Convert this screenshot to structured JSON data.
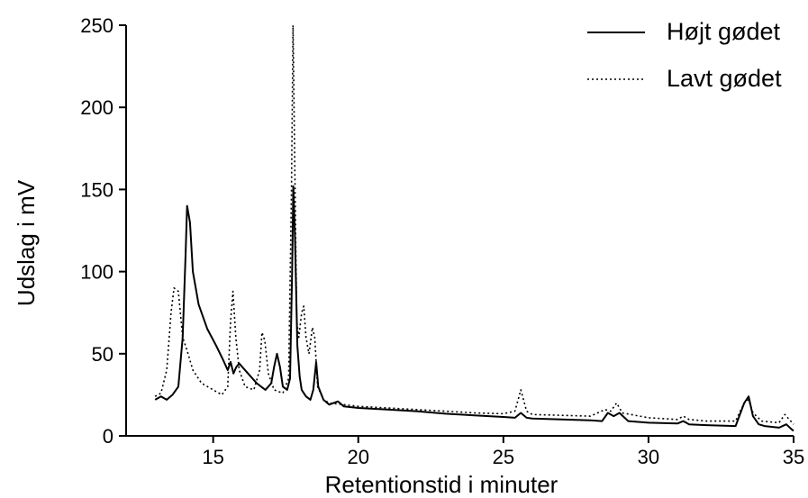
{
  "chart_data": {
    "type": "line",
    "xlabel": "Retentionstid i minuter",
    "ylabel": "Udslag i mV",
    "xlim": [
      12,
      35
    ],
    "ylim": [
      0,
      250
    ],
    "xticks": [
      15,
      20,
      25,
      30,
      35
    ],
    "yticks": [
      0,
      50,
      100,
      150,
      200,
      250
    ],
    "grid": false,
    "legend_position": "top-right",
    "series": [
      {
        "name": "Højt gødet",
        "style": "solid",
        "color": "#000000",
        "points": [
          [
            13.0,
            22
          ],
          [
            13.2,
            24
          ],
          [
            13.4,
            22
          ],
          [
            13.6,
            25
          ],
          [
            13.8,
            30
          ],
          [
            13.95,
            60
          ],
          [
            14.05,
            110
          ],
          [
            14.1,
            140
          ],
          [
            14.2,
            130
          ],
          [
            14.3,
            100
          ],
          [
            14.5,
            80
          ],
          [
            14.8,
            65
          ],
          [
            15.1,
            55
          ],
          [
            15.35,
            46
          ],
          [
            15.5,
            40
          ],
          [
            15.6,
            45
          ],
          [
            15.7,
            38
          ],
          [
            15.8,
            42
          ],
          [
            15.9,
            44
          ],
          [
            16.0,
            42
          ],
          [
            16.2,
            38
          ],
          [
            16.5,
            32
          ],
          [
            16.8,
            28
          ],
          [
            16.9,
            30
          ],
          [
            17.0,
            32
          ],
          [
            17.1,
            42
          ],
          [
            17.2,
            50
          ],
          [
            17.3,
            42
          ],
          [
            17.4,
            30
          ],
          [
            17.55,
            28
          ],
          [
            17.65,
            35
          ],
          [
            17.72,
            100
          ],
          [
            17.76,
            152
          ],
          [
            17.82,
            120
          ],
          [
            17.9,
            55
          ],
          [
            17.98,
            36
          ],
          [
            18.05,
            28
          ],
          [
            18.2,
            24
          ],
          [
            18.35,
            22
          ],
          [
            18.45,
            28
          ],
          [
            18.55,
            45
          ],
          [
            18.62,
            30
          ],
          [
            18.8,
            22
          ],
          [
            19.0,
            19
          ],
          [
            19.3,
            21
          ],
          [
            19.5,
            18
          ],
          [
            20,
            17
          ],
          [
            21,
            16
          ],
          [
            22,
            15
          ],
          [
            23,
            13.5
          ],
          [
            24,
            12.5
          ],
          [
            25,
            11.5
          ],
          [
            25.4,
            11
          ],
          [
            25.6,
            14
          ],
          [
            25.8,
            11
          ],
          [
            26,
            10.5
          ],
          [
            27,
            10
          ],
          [
            28,
            9.5
          ],
          [
            28.4,
            9
          ],
          [
            28.6,
            14
          ],
          [
            28.8,
            12
          ],
          [
            29.0,
            14
          ],
          [
            29.3,
            9
          ],
          [
            30,
            8
          ],
          [
            31,
            7.5
          ],
          [
            31.2,
            9
          ],
          [
            31.4,
            7
          ],
          [
            32,
            6.5
          ],
          [
            33,
            6
          ],
          [
            33.3,
            20
          ],
          [
            33.45,
            24
          ],
          [
            33.6,
            12
          ],
          [
            33.8,
            7
          ],
          [
            34,
            6
          ],
          [
            34.5,
            5
          ],
          [
            34.75,
            7
          ],
          [
            34.9,
            4.5
          ],
          [
            35,
            3
          ]
        ]
      },
      {
        "name": "Lavt gødet",
        "style": "dotted",
        "color": "#000000",
        "points": [
          [
            13.0,
            24
          ],
          [
            13.2,
            26
          ],
          [
            13.4,
            40
          ],
          [
            13.55,
            75
          ],
          [
            13.65,
            90
          ],
          [
            13.8,
            88
          ],
          [
            13.95,
            60
          ],
          [
            14.1,
            52
          ],
          [
            14.3,
            40
          ],
          [
            14.6,
            32
          ],
          [
            15.0,
            28
          ],
          [
            15.3,
            25
          ],
          [
            15.5,
            30
          ],
          [
            15.6,
            70
          ],
          [
            15.68,
            88
          ],
          [
            15.78,
            60
          ],
          [
            15.9,
            40
          ],
          [
            16.1,
            30
          ],
          [
            16.4,
            28
          ],
          [
            16.6,
            40
          ],
          [
            16.68,
            63
          ],
          [
            16.78,
            58
          ],
          [
            16.9,
            38
          ],
          [
            17.1,
            28
          ],
          [
            17.4,
            26
          ],
          [
            17.6,
            35
          ],
          [
            17.7,
            150
          ],
          [
            17.75,
            250
          ],
          [
            17.8,
            180
          ],
          [
            17.88,
            70
          ],
          [
            17.95,
            60
          ],
          [
            18.05,
            75
          ],
          [
            18.12,
            79
          ],
          [
            18.2,
            60
          ],
          [
            18.3,
            50
          ],
          [
            18.42,
            66
          ],
          [
            18.5,
            60
          ],
          [
            18.6,
            30
          ],
          [
            18.8,
            22
          ],
          [
            19.0,
            20
          ],
          [
            19.5,
            19
          ],
          [
            20,
            18
          ],
          [
            21,
            17
          ],
          [
            22,
            16
          ],
          [
            23,
            15
          ],
          [
            24,
            14
          ],
          [
            25,
            13.5
          ],
          [
            25.4,
            15
          ],
          [
            25.6,
            28
          ],
          [
            25.8,
            15
          ],
          [
            26,
            13
          ],
          [
            27,
            12.5
          ],
          [
            28,
            12
          ],
          [
            28.5,
            16
          ],
          [
            28.7,
            15
          ],
          [
            28.9,
            20
          ],
          [
            29.1,
            14
          ],
          [
            30,
            11
          ],
          [
            31,
            10
          ],
          [
            31.2,
            12
          ],
          [
            31.4,
            10
          ],
          [
            32,
            9
          ],
          [
            33,
            9
          ],
          [
            33.3,
            20
          ],
          [
            33.45,
            22
          ],
          [
            33.6,
            14
          ],
          [
            33.9,
            9
          ],
          [
            34.5,
            8
          ],
          [
            34.7,
            13
          ],
          [
            34.85,
            10
          ],
          [
            35,
            7
          ]
        ]
      }
    ]
  }
}
